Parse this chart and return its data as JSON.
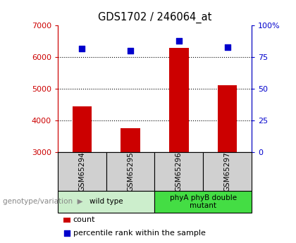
{
  "title": "GDS1702 / 246064_at",
  "samples": [
    "GSM65294",
    "GSM65295",
    "GSM65296",
    "GSM65297"
  ],
  "counts": [
    4450,
    3750,
    6300,
    5100
  ],
  "percentiles": [
    82,
    80,
    88,
    83
  ],
  "ylim_left": [
    3000,
    7000
  ],
  "ylim_right": [
    0,
    100
  ],
  "yticks_left": [
    3000,
    4000,
    5000,
    6000,
    7000
  ],
  "yticks_right": [
    0,
    25,
    50,
    75,
    100
  ],
  "bar_color": "#cc0000",
  "dot_color": "#0000cc",
  "bar_width": 0.4,
  "groups": [
    {
      "label": "wild type",
      "samples": [
        0,
        1
      ],
      "color": "#cceecc"
    },
    {
      "label": "phyA phyB double\nmutant",
      "samples": [
        2,
        3
      ],
      "color": "#44dd44"
    }
  ],
  "sample_box_color": "#d0d0d0",
  "legend_count_label": "count",
  "legend_pct_label": "percentile rank within the sample",
  "genotype_label": "genotype/variation",
  "axis_left_color": "#cc0000",
  "axis_right_color": "#0000cc"
}
